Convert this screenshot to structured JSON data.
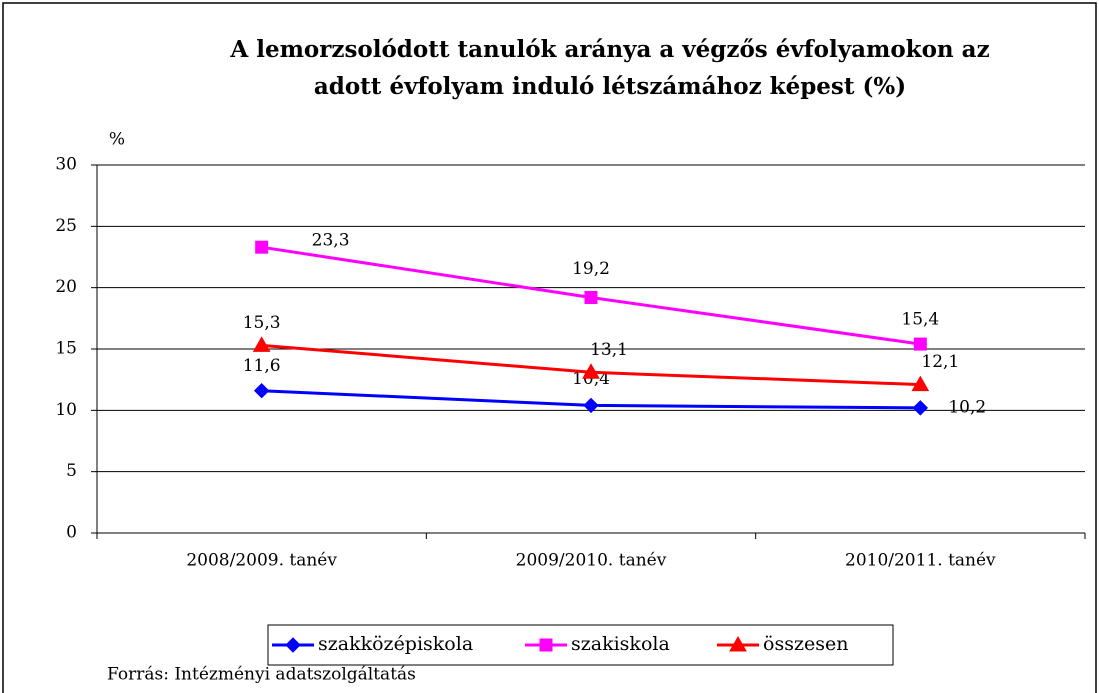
{
  "chart_data": {
    "type": "line",
    "title": [
      "A lemorzsolódott tanulók aránya a végzős évfolyamokon az",
      "adott évfolyam induló létszámához képest (%)"
    ],
    "y_label": "%",
    "categories": [
      "2008/2009. tanév",
      "2009/2010. tanév",
      "2010/2011. tanév"
    ],
    "series": [
      {
        "name": "szakközépiskola",
        "color": "#0000ff",
        "marker": "diamond",
        "values": [
          11.6,
          10.4,
          10.2
        ],
        "value_labels": [
          "11,6",
          "10,4",
          "10,2"
        ]
      },
      {
        "name": "szakiskola",
        "color": "#ff00ff",
        "marker": "square",
        "values": [
          23.3,
          19.2,
          15.4
        ],
        "value_labels": [
          "23,3",
          "19,2",
          "15,4"
        ]
      },
      {
        "name": "összesen",
        "color": "#ff0000",
        "marker": "triangle",
        "values": [
          15.3,
          13.1,
          12.1
        ],
        "value_labels": [
          "15,3",
          "13,1",
          "12,1"
        ]
      }
    ],
    "ylim": [
      0,
      30
    ],
    "yticks": [
      0,
      5,
      10,
      15,
      20,
      25,
      30
    ],
    "grid": true,
    "legend": "bottom",
    "source": "Forrás: Intézményi adatszolgáltatás"
  }
}
